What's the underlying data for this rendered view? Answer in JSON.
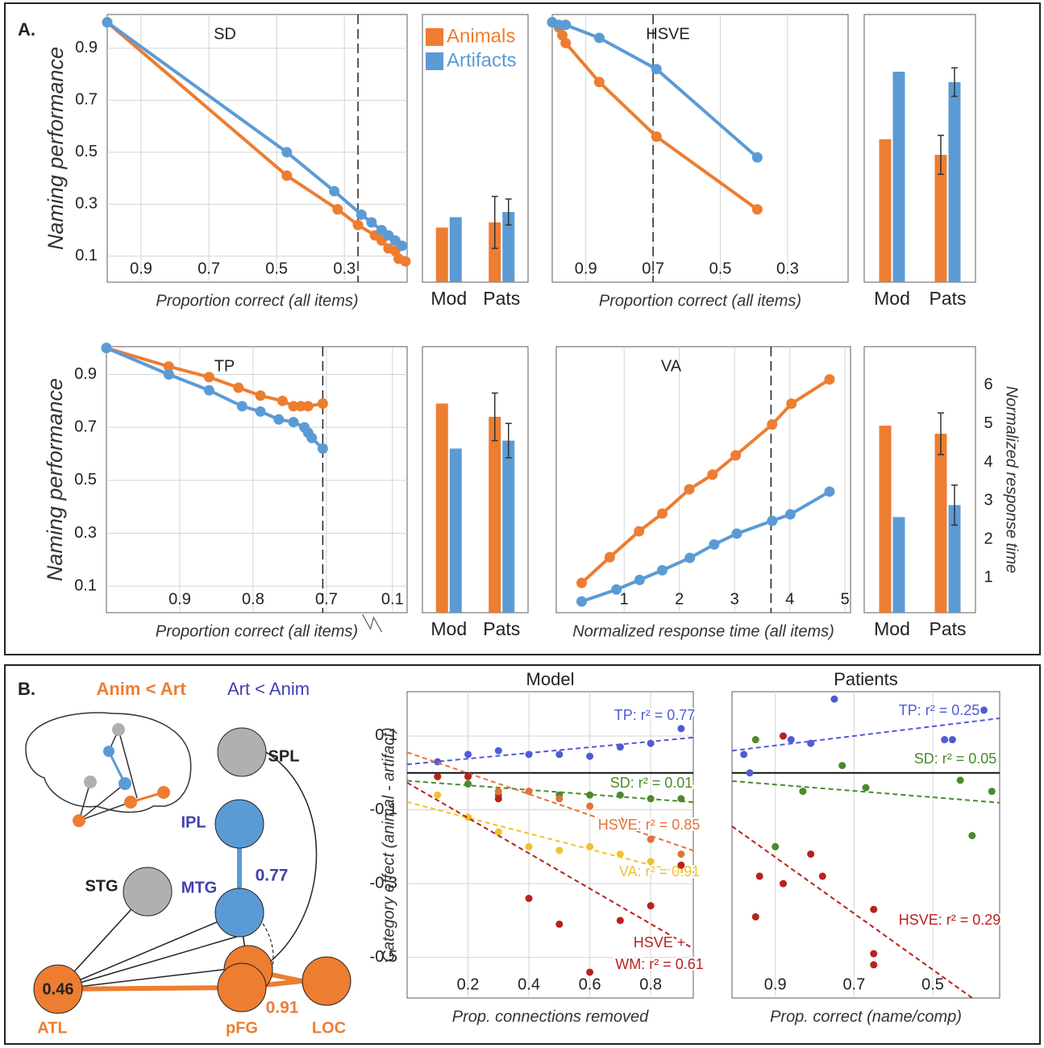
{
  "figure": {
    "panel_a": "A.",
    "panel_b": "B."
  },
  "chart_data": [
    {
      "type": "line",
      "title": "SD",
      "xlabel": "Proportion correct (all items)",
      "ylabel": "Naming performance",
      "xlim": [
        1.0,
        0.115
      ],
      "ylim": [
        0,
        1.03
      ],
      "xticks": [
        0.9,
        0.7,
        0.5,
        0.3
      ],
      "yticks": [
        0.9,
        0.7,
        0.5,
        0.3,
        0.1
      ],
      "grid": true,
      "reference_x": 0.26,
      "series": [
        {
          "color": "#ED7D31",
          "x": [
            1.0,
            0.47,
            0.32,
            0.26,
            0.21,
            0.19,
            0.17,
            0.15,
            0.14,
            0.12
          ],
          "values": [
            1.0,
            0.41,
            0.28,
            0.22,
            0.18,
            0.16,
            0.13,
            0.12,
            0.09,
            0.08
          ]
        },
        {
          "color": "#5B9BD5",
          "x": [
            1.0,
            0.47,
            0.33,
            0.25,
            0.22,
            0.19,
            0.17,
            0.15,
            0.13
          ],
          "values": [
            1.0,
            0.5,
            0.35,
            0.26,
            0.23,
            0.2,
            0.18,
            0.16,
            0.14
          ]
        }
      ]
    },
    {
      "type": "bar",
      "categories": [
        "Mod",
        "Pats"
      ],
      "ylim": [
        0,
        1.03
      ],
      "legend": "upper left",
      "series": [
        {
          "name": "Animals",
          "color": "#ED7D31",
          "values": [
            0.21,
            0.23
          ],
          "errors": [
            null,
            0.1
          ]
        },
        {
          "name": "Artifacts",
          "color": "#5B9BD5",
          "values": [
            0.25,
            0.27
          ],
          "errors": [
            null,
            0.05
          ]
        }
      ]
    },
    {
      "type": "line",
      "title": "HSVE",
      "xlabel": "Proportion correct (all items)",
      "xlim": [
        1.0,
        0.12
      ],
      "ylim": [
        0,
        1.03
      ],
      "xticks": [
        0.9,
        0.7,
        0.5,
        0.3
      ],
      "grid": true,
      "reference_x": 0.7,
      "series": [
        {
          "color": "#ED7D31",
          "x": [
            1.0,
            0.98,
            0.97,
            0.96,
            0.86,
            0.69,
            0.39
          ],
          "values": [
            1.0,
            0.98,
            0.95,
            0.92,
            0.77,
            0.56,
            0.28
          ]
        },
        {
          "color": "#5B9BD5",
          "x": [
            1.0,
            0.98,
            0.96,
            0.86,
            0.69,
            0.39
          ],
          "values": [
            1.0,
            0.99,
            0.99,
            0.94,
            0.82,
            0.48
          ]
        }
      ]
    },
    {
      "type": "bar",
      "categories": [
        "Mod",
        "Pats"
      ],
      "ylim": [
        0,
        1.03
      ],
      "series": [
        {
          "color": "#ED7D31",
          "values": [
            0.55,
            0.49
          ],
          "errors": [
            null,
            0.075
          ]
        },
        {
          "color": "#5B9BD5",
          "values": [
            0.81,
            0.77
          ],
          "errors": [
            null,
            0.055
          ]
        }
      ]
    },
    {
      "type": "line",
      "title": "TP",
      "xlabel": "Proportion correct (all items)",
      "ylabel": "Naming performance",
      "xlim": [
        1.0,
        0.08
      ],
      "x_break": [
        0.64,
        0.13
      ],
      "ylim": [
        0,
        1.005
      ],
      "xticks": [
        0.9,
        0.8,
        0.7,
        0.1
      ],
      "yticks": [
        0.9,
        0.7,
        0.5,
        0.3,
        0.1
      ],
      "grid": true,
      "reference_x": 0.705,
      "series": [
        {
          "color": "#ED7D31",
          "x": [
            1.0,
            0.915,
            0.86,
            0.82,
            0.79,
            0.76,
            0.745,
            0.735,
            0.725,
            0.705
          ],
          "values": [
            1.0,
            0.93,
            0.89,
            0.85,
            0.82,
            0.8,
            0.78,
            0.78,
            0.78,
            0.79
          ]
        },
        {
          "color": "#5B9BD5",
          "x": [
            1.0,
            0.915,
            0.86,
            0.815,
            0.79,
            0.765,
            0.745,
            0.73,
            0.725,
            0.72,
            0.705
          ],
          "values": [
            1.0,
            0.9,
            0.84,
            0.78,
            0.76,
            0.73,
            0.72,
            0.7,
            0.68,
            0.66,
            0.62
          ]
        }
      ]
    },
    {
      "type": "bar",
      "categories": [
        "Mod",
        "Pats"
      ],
      "ylim": [
        0,
        1.005
      ],
      "series": [
        {
          "color": "#ED7D31",
          "values": [
            0.79,
            0.74
          ],
          "errors": [
            null,
            0.09
          ]
        },
        {
          "color": "#5B9BD5",
          "values": [
            0.62,
            0.65
          ],
          "errors": [
            null,
            0.065
          ]
        }
      ]
    },
    {
      "type": "line",
      "title": "VA",
      "xlabel": "Normalized response time (all items)",
      "xlim": [
        -0.23,
        5.1
      ],
      "ylim": [
        0.1,
        7.0
      ],
      "xticks": [
        1,
        2,
        3,
        4,
        5
      ],
      "grid": true,
      "reference_x": 3.66,
      "series": [
        {
          "color": "#ED7D31",
          "x": [
            0.23,
            0.74,
            1.27,
            1.69,
            2.18,
            2.6,
            3.02,
            3.68,
            4.03,
            4.72
          ],
          "values": [
            0.87,
            1.54,
            2.21,
            2.67,
            3.3,
            3.68,
            4.18,
            4.98,
            5.52,
            6.15
          ]
        },
        {
          "color": "#5B9BD5",
          "x": [
            0.23,
            0.86,
            1.28,
            1.69,
            2.19,
            2.63,
            3.04,
            3.68,
            4.01,
            4.72
          ],
          "values": [
            0.39,
            0.7,
            0.95,
            1.2,
            1.52,
            1.87,
            2.15,
            2.48,
            2.65,
            3.24
          ]
        }
      ]
    },
    {
      "type": "bar",
      "categories": [
        "Mod",
        "Pats"
      ],
      "ylim": [
        0.1,
        7.0
      ],
      "yticks": [
        1,
        2,
        3,
        4,
        5,
        6
      ],
      "ylabel": "Normalized response time",
      "series": [
        {
          "color": "#ED7D31",
          "values": [
            4.95,
            4.74
          ],
          "errors": [
            null,
            0.54
          ]
        },
        {
          "color": "#5B9BD5",
          "values": [
            2.58,
            2.89
          ],
          "errors": [
            null,
            0.52
          ]
        }
      ]
    },
    {
      "type": "scatter",
      "title": "Model",
      "xlabel": "Prop. connections removed",
      "ylabel": "Category effect (animal - artifact)",
      "xlim": [
        0,
        0.94
      ],
      "ylim": [
        -0.61,
        0.22
      ],
      "xticks": [
        0.2,
        0.4,
        0.6,
        0.8
      ],
      "yticks": [
        0.1,
        -0.1,
        -0.3,
        -0.5
      ],
      "grid": true,
      "series": [
        {
          "label": "TP: r² = 0.77",
          "color": "#4f5bd5",
          "x": [
            0.1,
            0.2,
            0.3,
            0.4,
            0.5,
            0.6,
            0.7,
            0.8,
            0.9
          ],
          "values": [
            0.03,
            0.05,
            0.06,
            0.05,
            0.05,
            0.045,
            0.07,
            0.08,
            0.12
          ]
        },
        {
          "label": "SD: r² = 0.01",
          "color": "#4a8a2c",
          "x": [
            0.1,
            0.2,
            0.3,
            0.4,
            0.5,
            0.6,
            0.7,
            0.8,
            0.9
          ],
          "values": [
            -0.01,
            -0.03,
            -0.06,
            -0.05,
            -0.06,
            -0.06,
            -0.06,
            -0.07,
            -0.07
          ]
        },
        {
          "label": "HSVE: r² = 0.85",
          "color": "#e2743a",
          "x": [
            0.2,
            0.3,
            0.4,
            0.5,
            0.6,
            0.7,
            0.8,
            0.9
          ],
          "values": [
            -0.01,
            -0.05,
            -0.05,
            -0.07,
            -0.09,
            -0.13,
            -0.18,
            -0.22
          ]
        },
        {
          "label": "VA: r² = 0.91",
          "color": "#f2c12e",
          "x": [
            0.1,
            0.2,
            0.3,
            0.4,
            0.5,
            0.6,
            0.7,
            0.8,
            0.9
          ],
          "values": [
            -0.06,
            -0.12,
            -0.16,
            -0.2,
            -0.21,
            -0.2,
            -0.22,
            -0.24,
            -0.26
          ]
        },
        {
          "label": [
            "HSVE +",
            "WM: r² = 0.61"
          ],
          "color": "#b8221e",
          "x": [
            0.1,
            0.2,
            0.3,
            0.4,
            0.5,
            0.6,
            0.7,
            0.8,
            0.9
          ],
          "values": [
            -0.01,
            -0.01,
            -0.07,
            -0.34,
            -0.41,
            -0.54,
            -0.4,
            -0.36,
            -0.25
          ]
        }
      ]
    },
    {
      "type": "scatter",
      "title": "Patients",
      "xlabel": "Prop. correct (name/comp)",
      "xlim": [
        1.01,
        0.33
      ],
      "ylim": [
        -0.61,
        0.22
      ],
      "xticks": [
        0.9,
        0.7,
        0.5
      ],
      "grid": true,
      "series": [
        {
          "label": "TP: r² = 0.25",
          "color": "#4f5bd5",
          "x": [
            0.98,
            0.965,
            0.88,
            0.86,
            0.81,
            0.75,
            0.47,
            0.45,
            0.37
          ],
          "values": [
            0.05,
            0.0,
            0.1,
            0.09,
            0.08,
            0.2,
            0.09,
            0.09,
            0.17
          ]
        },
        {
          "label": "SD: r² = 0.05",
          "color": "#4a8a2c",
          "x": [
            0.95,
            0.73,
            0.83,
            0.67,
            0.43,
            0.35,
            0.4,
            0.9
          ],
          "values": [
            0.09,
            0.02,
            -0.05,
            -0.04,
            -0.02,
            -0.05,
            -0.17,
            -0.2
          ]
        },
        {
          "label": "HSVE: r² = 0.29",
          "color": "#b8221e",
          "x": [
            0.94,
            0.95,
            0.88,
            0.81,
            0.78,
            0.65,
            0.65,
            0.65,
            0.88
          ],
          "values": [
            -0.28,
            -0.39,
            -0.3,
            -0.22,
            -0.28,
            -0.37,
            -0.49,
            -0.52,
            0.1
          ]
        }
      ]
    }
  ],
  "diagram": {
    "legend": [
      "Anim < Art",
      "Art < Anim"
    ],
    "nodes": [
      "SPL",
      "IPL",
      "MTG",
      "STG",
      "ATL",
      "pFG",
      "LOC"
    ],
    "edge_labels": [
      0.77,
      0.46,
      0.91
    ]
  }
}
